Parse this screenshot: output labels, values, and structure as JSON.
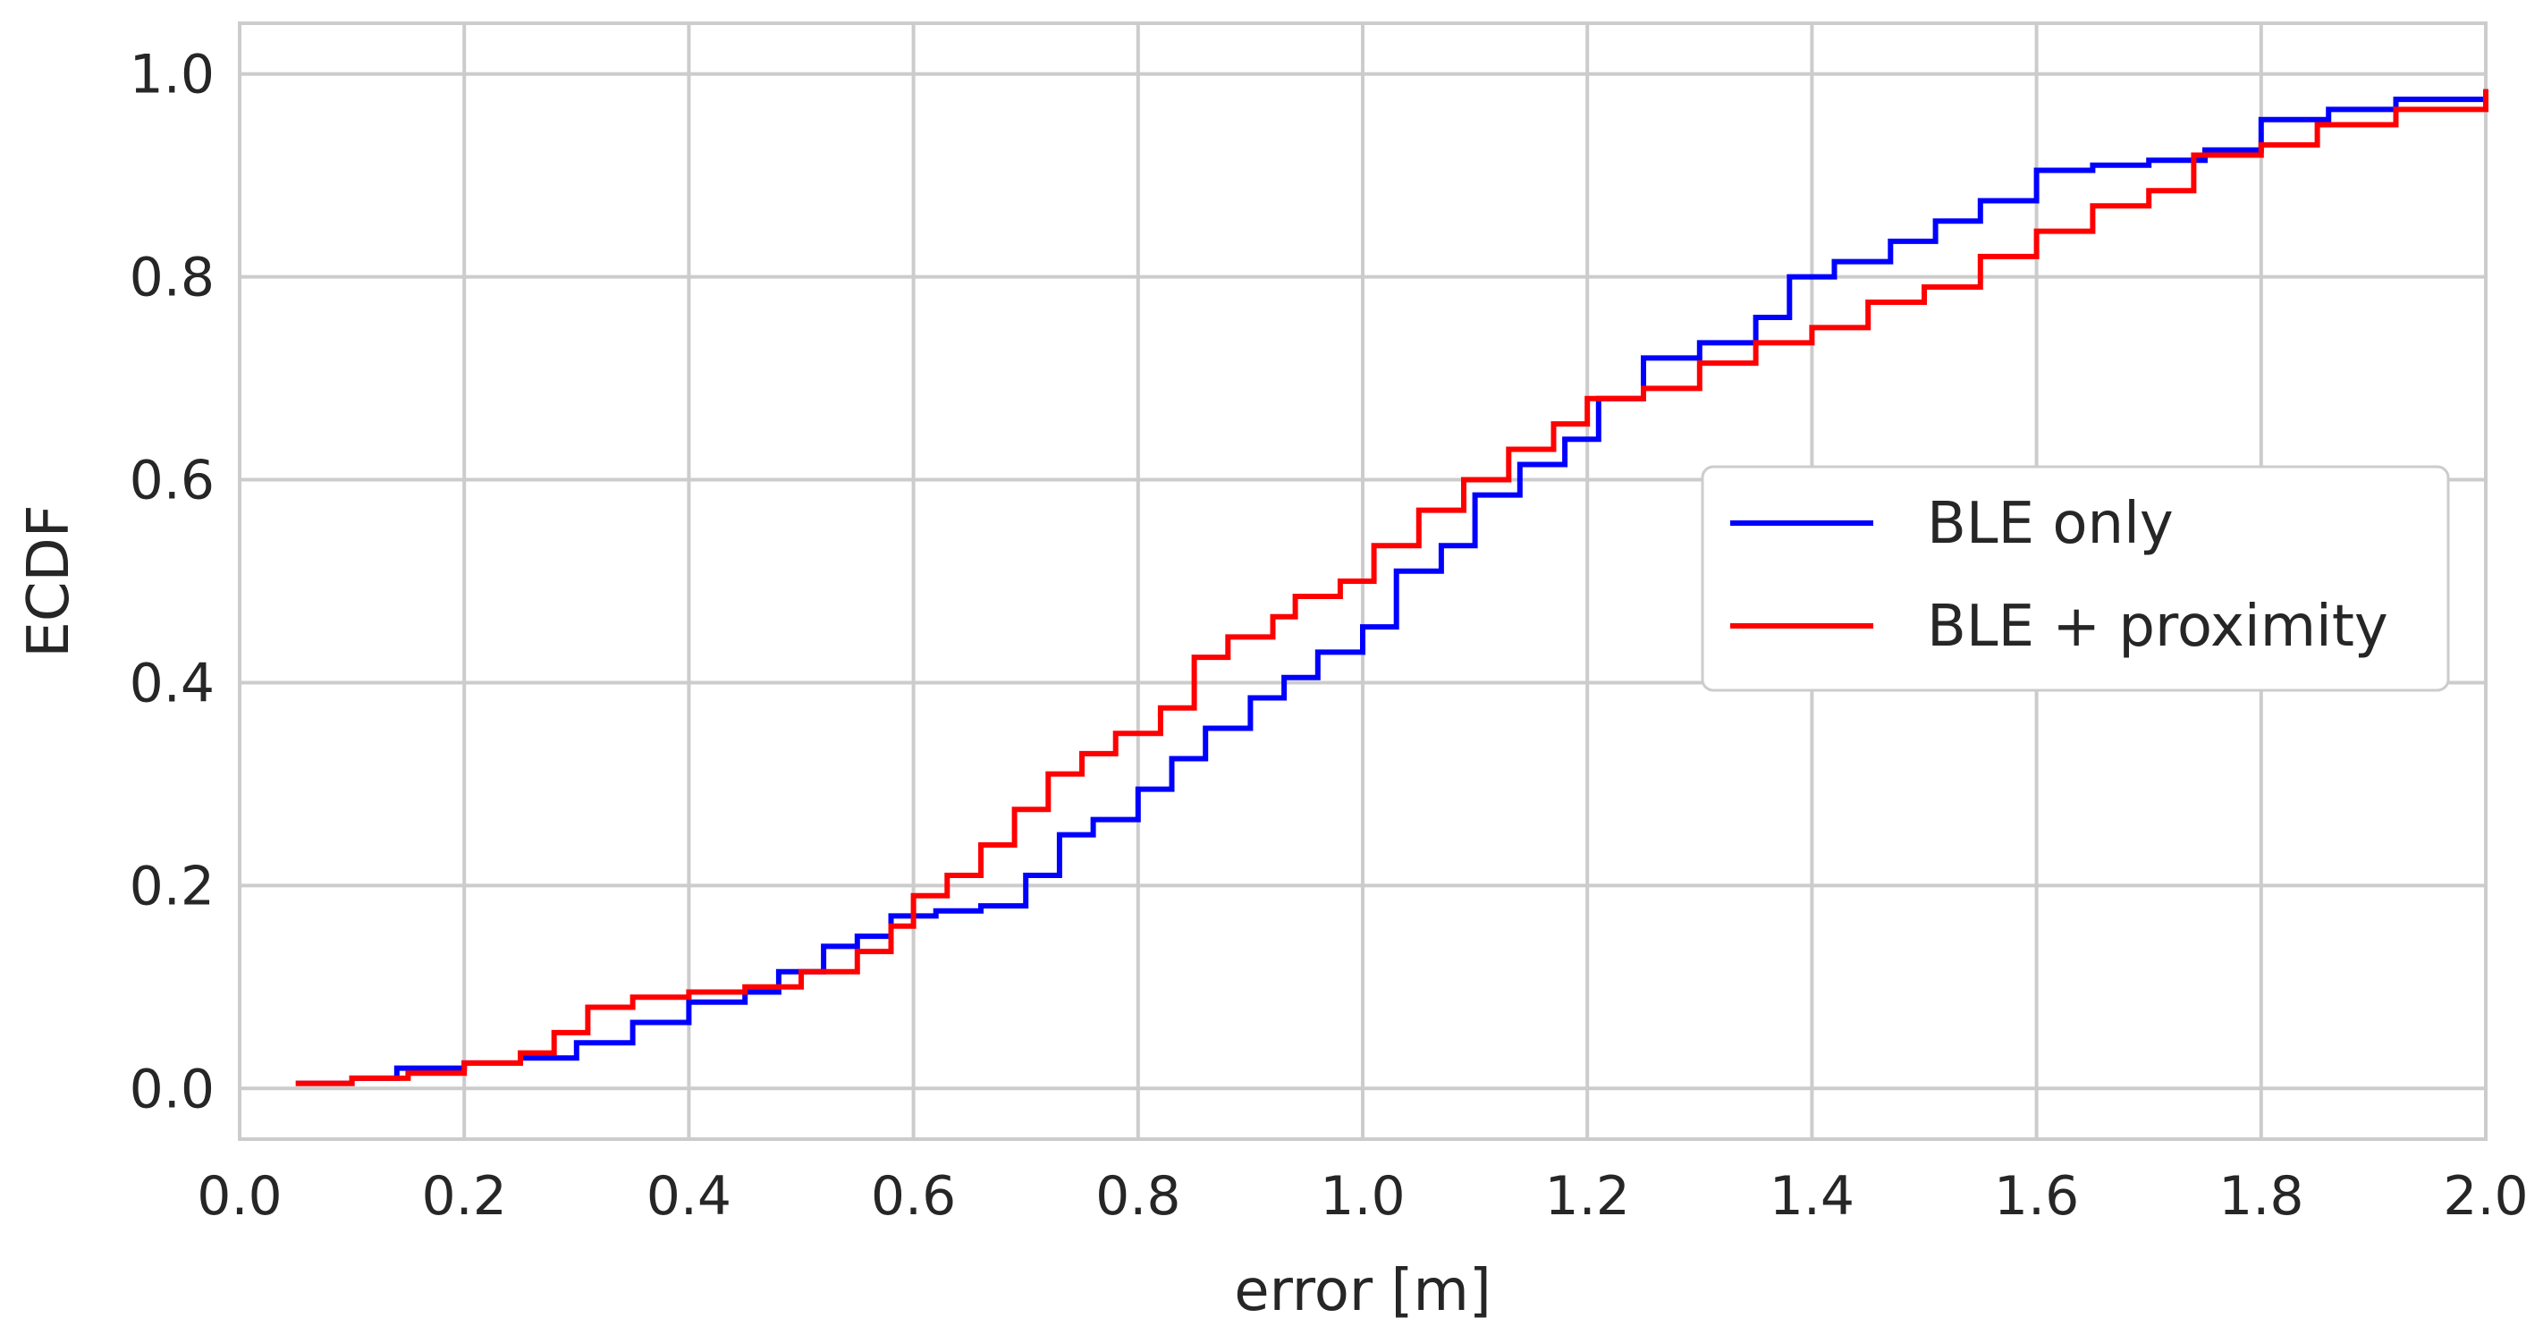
{
  "chart_data": {
    "type": "line",
    "title": "",
    "xlabel": "error [m]",
    "ylabel": "ECDF",
    "xlim": [
      0.0,
      2.0
    ],
    "ylim": [
      -0.05,
      1.05
    ],
    "xticks": [
      "0.0",
      "0.2",
      "0.4",
      "0.6",
      "0.8",
      "1.0",
      "1.2",
      "1.4",
      "1.6",
      "1.8",
      "2.0"
    ],
    "yticks": [
      "0.0",
      "0.2",
      "0.4",
      "0.6",
      "0.8",
      "1.0"
    ],
    "grid": true,
    "legend_position": "center-right",
    "series": [
      {
        "name": "BLE only",
        "color": "#0000ff",
        "points": [
          [
            0.05,
            0.005
          ],
          [
            0.1,
            0.01
          ],
          [
            0.14,
            0.02
          ],
          [
            0.2,
            0.025
          ],
          [
            0.25,
            0.03
          ],
          [
            0.3,
            0.045
          ],
          [
            0.35,
            0.065
          ],
          [
            0.4,
            0.085
          ],
          [
            0.45,
            0.095
          ],
          [
            0.48,
            0.115
          ],
          [
            0.52,
            0.14
          ],
          [
            0.55,
            0.15
          ],
          [
            0.58,
            0.17
          ],
          [
            0.62,
            0.175
          ],
          [
            0.66,
            0.18
          ],
          [
            0.7,
            0.21
          ],
          [
            0.73,
            0.25
          ],
          [
            0.76,
            0.265
          ],
          [
            0.8,
            0.295
          ],
          [
            0.83,
            0.325
          ],
          [
            0.86,
            0.355
          ],
          [
            0.9,
            0.385
          ],
          [
            0.93,
            0.405
          ],
          [
            0.96,
            0.43
          ],
          [
            1.0,
            0.455
          ],
          [
            1.03,
            0.51
          ],
          [
            1.07,
            0.535
          ],
          [
            1.1,
            0.585
          ],
          [
            1.14,
            0.615
          ],
          [
            1.18,
            0.64
          ],
          [
            1.21,
            0.68
          ],
          [
            1.25,
            0.72
          ],
          [
            1.3,
            0.735
          ],
          [
            1.35,
            0.76
          ],
          [
            1.38,
            0.8
          ],
          [
            1.42,
            0.815
          ],
          [
            1.47,
            0.835
          ],
          [
            1.51,
            0.855
          ],
          [
            1.55,
            0.875
          ],
          [
            1.6,
            0.905
          ],
          [
            1.65,
            0.91
          ],
          [
            1.7,
            0.915
          ],
          [
            1.75,
            0.925
          ],
          [
            1.8,
            0.955
          ],
          [
            1.86,
            0.965
          ],
          [
            1.92,
            0.975
          ],
          [
            2.0,
            0.985
          ]
        ]
      },
      {
        "name": "BLE + proximity",
        "color": "#ff0000",
        "points": [
          [
            0.05,
            0.005
          ],
          [
            0.1,
            0.01
          ],
          [
            0.15,
            0.015
          ],
          [
            0.2,
            0.025
          ],
          [
            0.25,
            0.035
          ],
          [
            0.28,
            0.055
          ],
          [
            0.31,
            0.08
          ],
          [
            0.35,
            0.09
          ],
          [
            0.4,
            0.095
          ],
          [
            0.45,
            0.1
          ],
          [
            0.5,
            0.115
          ],
          [
            0.55,
            0.135
          ],
          [
            0.58,
            0.16
          ],
          [
            0.6,
            0.19
          ],
          [
            0.63,
            0.21
          ],
          [
            0.66,
            0.24
          ],
          [
            0.69,
            0.275
          ],
          [
            0.72,
            0.31
          ],
          [
            0.75,
            0.33
          ],
          [
            0.78,
            0.35
          ],
          [
            0.82,
            0.375
          ],
          [
            0.85,
            0.425
          ],
          [
            0.88,
            0.445
          ],
          [
            0.92,
            0.465
          ],
          [
            0.94,
            0.485
          ],
          [
            0.98,
            0.5
          ],
          [
            1.01,
            0.535
          ],
          [
            1.05,
            0.57
          ],
          [
            1.09,
            0.6
          ],
          [
            1.13,
            0.63
          ],
          [
            1.17,
            0.655
          ],
          [
            1.2,
            0.68
          ],
          [
            1.25,
            0.69
          ],
          [
            1.3,
            0.715
          ],
          [
            1.35,
            0.735
          ],
          [
            1.4,
            0.75
          ],
          [
            1.45,
            0.775
          ],
          [
            1.5,
            0.79
          ],
          [
            1.55,
            0.82
          ],
          [
            1.6,
            0.845
          ],
          [
            1.65,
            0.87
          ],
          [
            1.7,
            0.885
          ],
          [
            1.74,
            0.92
          ],
          [
            1.8,
            0.93
          ],
          [
            1.85,
            0.95
          ],
          [
            1.92,
            0.965
          ],
          [
            2.0,
            0.985
          ]
        ]
      }
    ]
  }
}
